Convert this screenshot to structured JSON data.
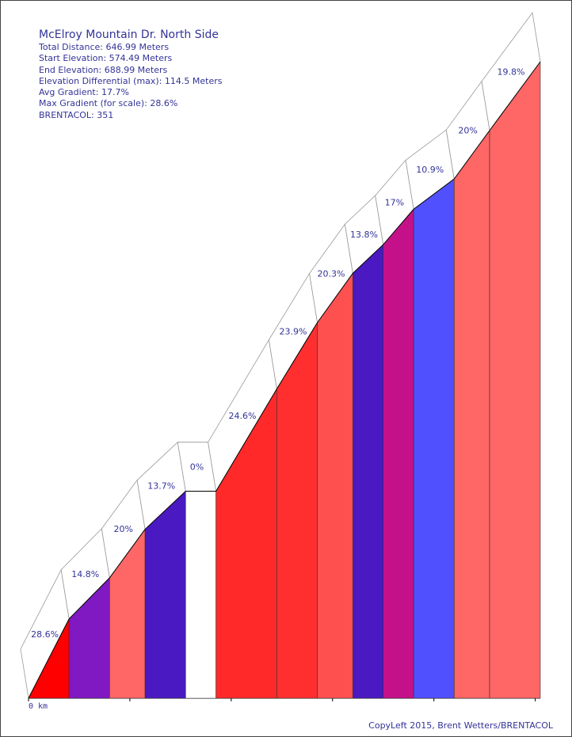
{
  "header": {
    "title": "McElroy Mountain Dr. North Side",
    "total_distance": "Total Distance: 646.99 Meters",
    "start_elevation": "Start Elevation: 574.49 Meters",
    "end_elevation": "End Elevation: 688.99 Meters",
    "elevation_differential": "Elevation Differential (max): 114.5 Meters",
    "avg_gradient": "Avg Gradient: 17.7%",
    "max_gradient": "Max Gradient (for scale): 28.6%",
    "brentacol": "BRENTACOL: 351"
  },
  "footer": {
    "copyright": "CopyLeft 2015, Brent Wetters/BRENTACOL"
  },
  "chart_data": {
    "type": "area",
    "x_unit": "m",
    "y_unit": "m",
    "x_start_label": "0 km",
    "segments": [
      {
        "start": 0,
        "end": 40,
        "gradient": 28.6,
        "label": "28.6%",
        "color": "#ff0000"
      },
      {
        "start": 40,
        "end": 80,
        "gradient": 14.8,
        "label": "14.8%",
        "color": "#8019c2"
      },
      {
        "start": 80,
        "end": 115,
        "gradient": 20,
        "label": "20%",
        "color": "#ff6666"
      },
      {
        "start": 115,
        "end": 155,
        "gradient": 13.7,
        "label": "13.7%",
        "color": "#4a19c2"
      },
      {
        "start": 155,
        "end": 185,
        "gradient": 0,
        "label": "0%",
        "color": "#ffffff"
      },
      {
        "start": 185,
        "end": 245,
        "gradient": 24.6,
        "label": "24.6%",
        "color": "#ff2929"
      },
      {
        "start": 245,
        "end": 285,
        "gradient": 23.9,
        "label": "23.9%",
        "color": "#ff2f2f"
      },
      {
        "start": 285,
        "end": 320,
        "gradient": 20.3,
        "label": "20.3%",
        "color": "#ff5050"
      },
      {
        "start": 320,
        "end": 350,
        "gradient": 13.8,
        "label": "13.8%",
        "color": "#4a19c2"
      },
      {
        "start": 350,
        "end": 380,
        "gradient": 17,
        "label": "17%",
        "color": "#c41189"
      },
      {
        "start": 380,
        "end": 420,
        "gradient": 10.9,
        "label": "10.9%",
        "color": "#5050ff"
      },
      {
        "start": 420,
        "end": 455,
        "gradient": 20,
        "label": "20%",
        "color": "#ff6666"
      },
      {
        "start": 455,
        "end": 505,
        "gradient": 19.8,
        "label": "19.8%",
        "color": "#ff6666"
      }
    ],
    "start_elevation": 574.49,
    "end_elevation": 688.99
  }
}
